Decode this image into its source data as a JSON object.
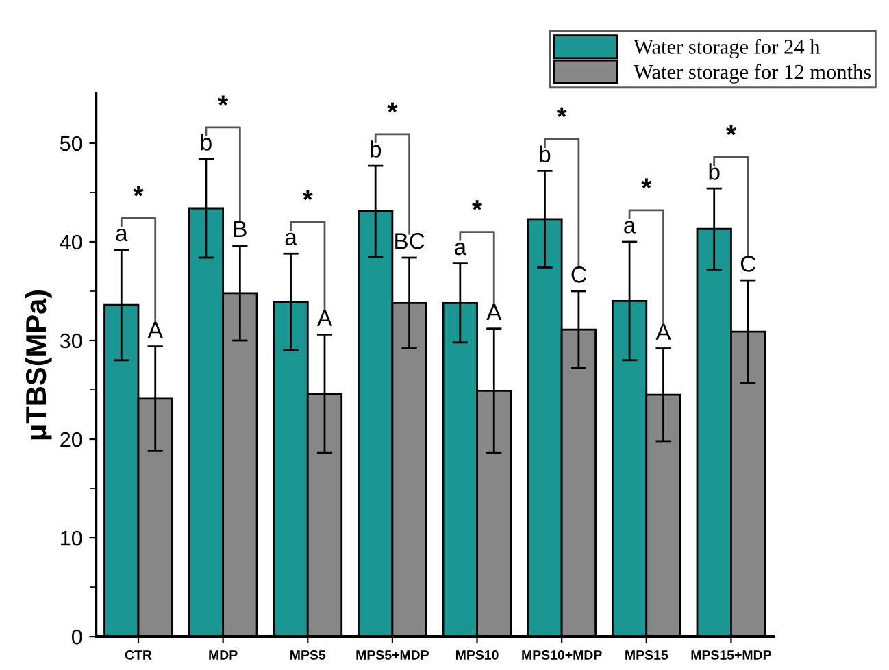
{
  "chart_data": {
    "type": "bar",
    "ylabel": "μTBS(MPa)",
    "categories": [
      "CTR",
      "MDP",
      "MPS5",
      "MPS5+MDP",
      "MPS10",
      "MPS10+MDP",
      "MPS15",
      "MPS15+MDP"
    ],
    "series": [
      {
        "name": "Water storage for 24 h",
        "color": "#1a9693",
        "values": [
          33.6,
          43.4,
          33.9,
          43.1,
          33.8,
          42.3,
          34.0,
          41.3
        ],
        "errors": [
          5.6,
          5.0,
          4.9,
          4.6,
          4.0,
          4.9,
          6.0,
          4.1
        ],
        "value_labels": [
          "a",
          "b",
          "a",
          "b",
          "a",
          "b",
          "a",
          "b"
        ]
      },
      {
        "name": "Water storage for 12 months",
        "color": "#878787",
        "values": [
          24.1,
          34.8,
          24.6,
          33.8,
          24.9,
          31.1,
          24.5,
          30.9
        ],
        "errors": [
          5.3,
          4.8,
          6.0,
          4.6,
          6.3,
          3.9,
          4.7,
          5.2
        ],
        "value_labels": [
          "A",
          "B",
          "A",
          "BC",
          "A",
          "C",
          "A",
          "C"
        ]
      }
    ],
    "annotations": [
      "*",
      "*",
      "*",
      "*",
      "*",
      "*",
      "*",
      "*"
    ],
    "ylim": [
      0,
      55
    ],
    "yticks": [
      0,
      10,
      20,
      30,
      40,
      50
    ],
    "grid": false,
    "legend": "top right"
  }
}
